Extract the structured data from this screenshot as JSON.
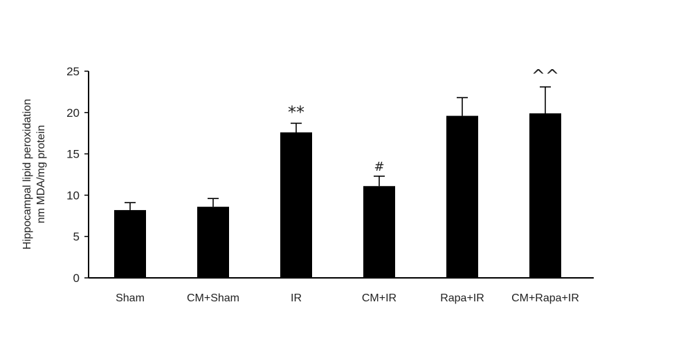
{
  "chart_data": {
    "type": "bar",
    "categories": [
      "Sham",
      "CM+Sham",
      "IR",
      "CM+IR",
      "Rapa+IR",
      "CM+Rapa+IR"
    ],
    "values": [
      8.2,
      8.6,
      17.6,
      11.1,
      19.6,
      19.9
    ],
    "error_bars": [
      0.9,
      1.0,
      1.1,
      1.2,
      2.2,
      3.2
    ],
    "annotations": [
      "",
      "",
      "**",
      "#",
      "",
      "^^"
    ],
    "ylabel_lines": [
      "Hippocampal lipid peroxidation",
      "nm MDA/mg protein"
    ],
    "xlabel": "",
    "ylim": [
      0,
      25
    ],
    "yticks": [
      0,
      5,
      10,
      15,
      20,
      25
    ],
    "grid": false,
    "bar_color": "#000000"
  }
}
